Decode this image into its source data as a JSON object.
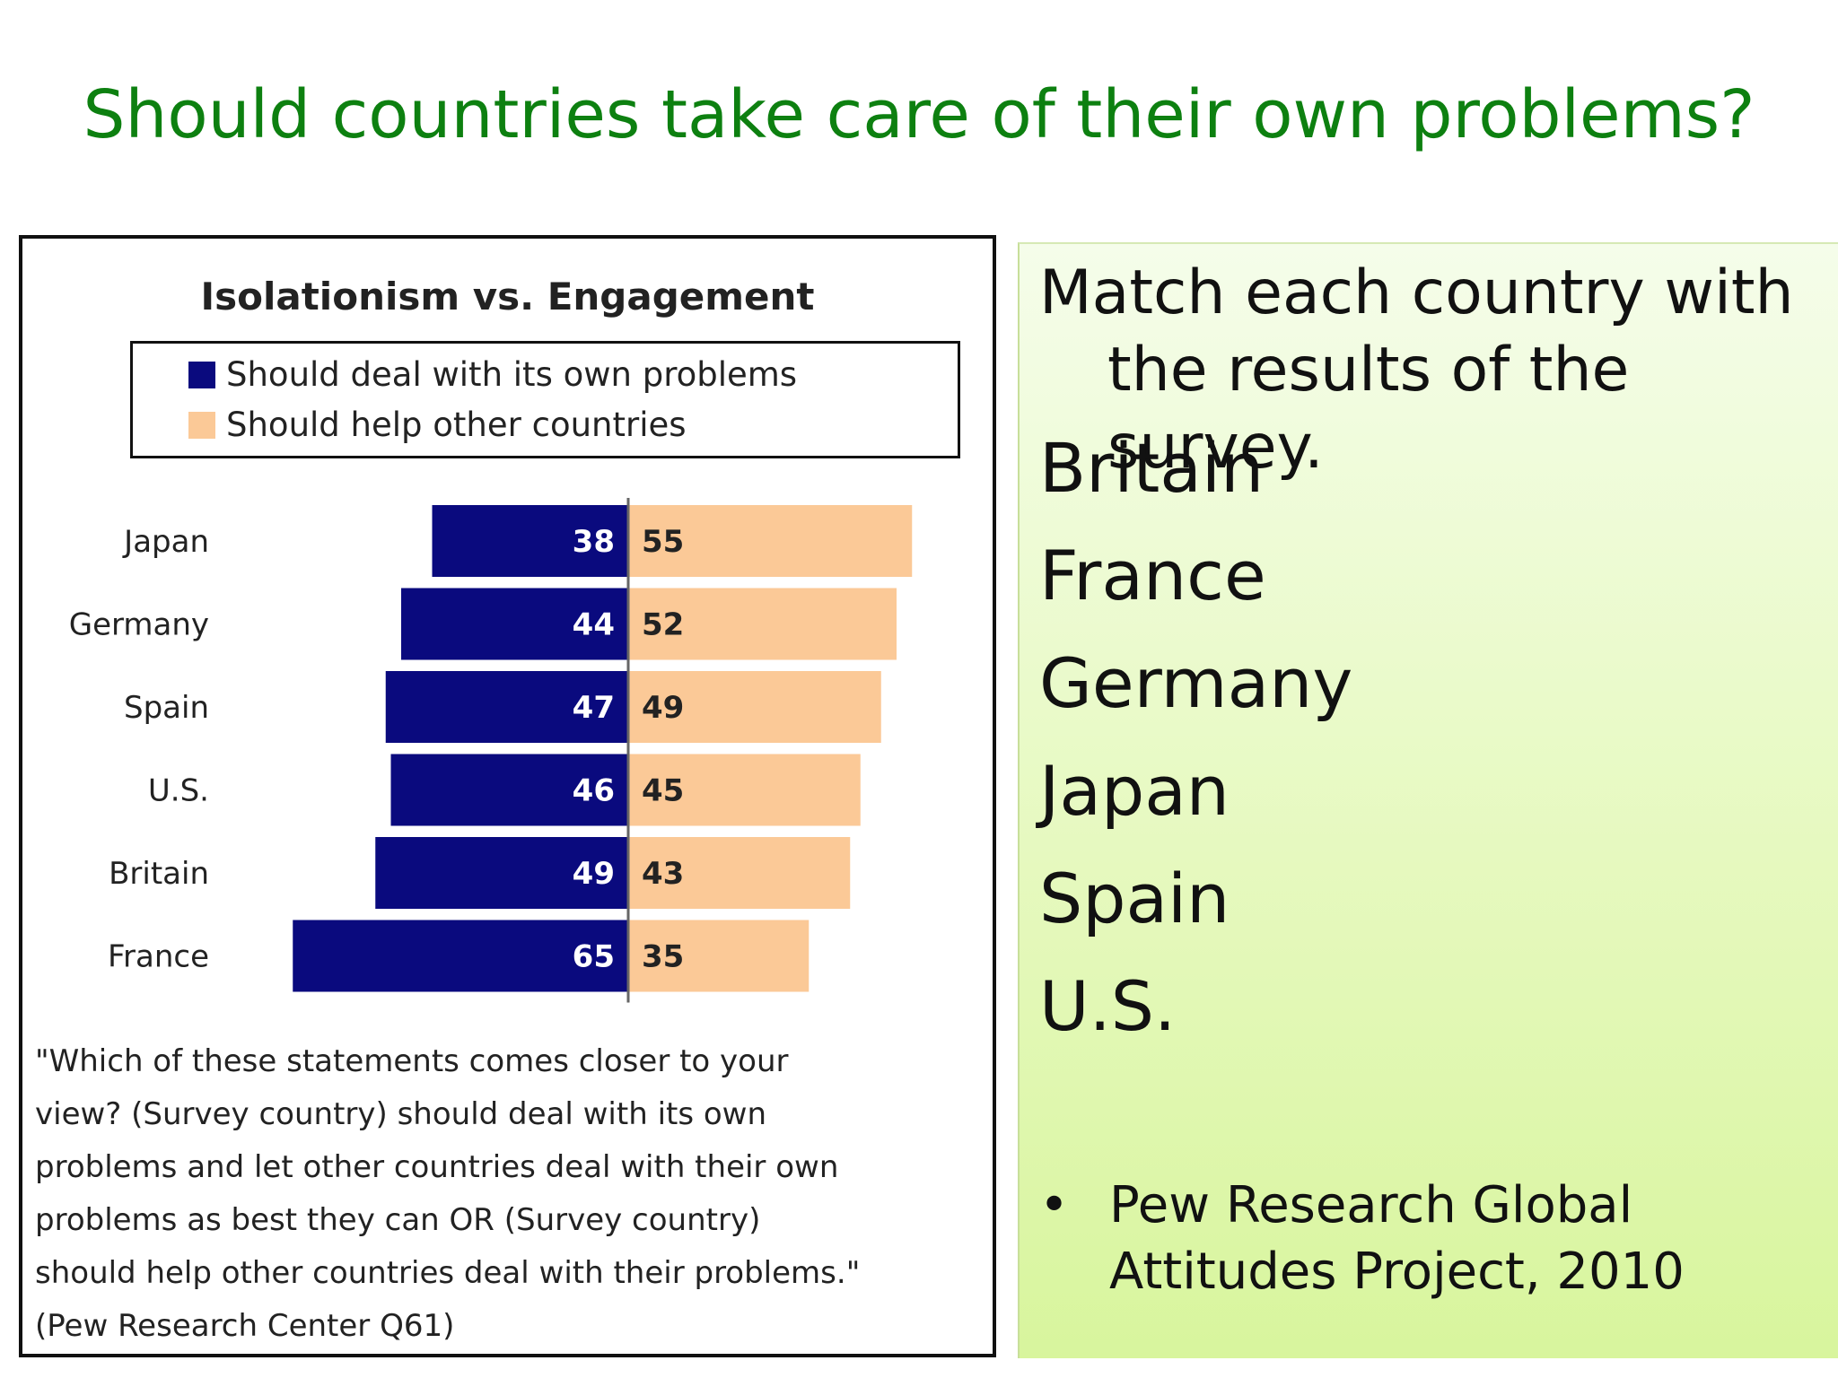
{
  "slide": {
    "title": "Should countries take care of their own problems?",
    "title_color": "#0d8010"
  },
  "right_panel": {
    "prompt_line1": "Match each country with",
    "prompt_line2": "the results of the survey.",
    "countries": [
      "Britain",
      "France",
      "Germany",
      "Japan",
      "Spain",
      "U.S."
    ],
    "bullet": "•",
    "source": "Pew Research Global Attitudes Project, 2010"
  },
  "chart_data": {
    "type": "bar",
    "orientation": "horizontal-diverging",
    "title": "Isolationism vs. Engagement",
    "legend": [
      "Should deal with its own problems",
      "Should help other countries"
    ],
    "categories": [
      "Japan",
      "Germany",
      "Spain",
      "U.S.",
      "Britain",
      "France"
    ],
    "series": [
      {
        "name": "Should deal with its own problems",
        "values": [
          38,
          44,
          47,
          46,
          49,
          65
        ],
        "color": "#0a0a7e",
        "label_color": "#ffffff"
      },
      {
        "name": "Should help other countries",
        "values": [
          55,
          52,
          49,
          45,
          43,
          35
        ],
        "color": "#fbc997",
        "label_color": "#222222"
      }
    ],
    "grid": false,
    "legend_position": "top",
    "question": "\"Which of these statements comes closer to your\nview? (Survey country) should deal with its own\nproblems and let other countries deal with their own\nproblems as best they can OR (Survey country)\nshould help other countries deal with their problems.\"\n(Pew Research Center Q61)"
  }
}
